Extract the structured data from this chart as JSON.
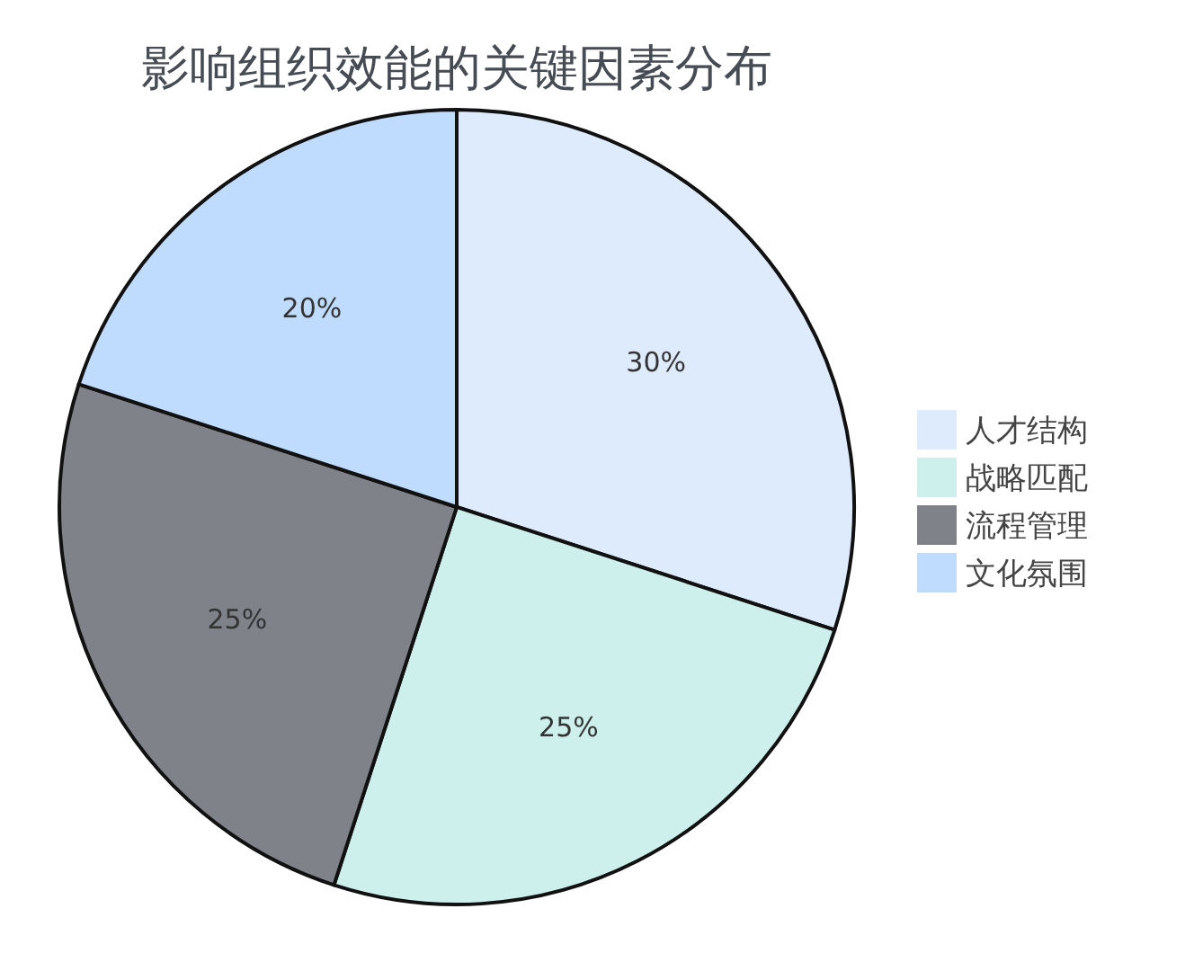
{
  "chart_data": {
    "type": "pie",
    "title": "影响组织效能的关键因素分布",
    "categories": [
      "人才结构",
      "战略匹配",
      "流程管理",
      "文化氛围"
    ],
    "values": [
      30,
      25,
      25,
      20
    ],
    "colors": [
      "#deebfd",
      "#cdf0ec",
      "#7f8389",
      "#bfdbfd"
    ],
    "value_labels": [
      "30%",
      "25%",
      "25%",
      "20%"
    ],
    "legend": "right"
  }
}
